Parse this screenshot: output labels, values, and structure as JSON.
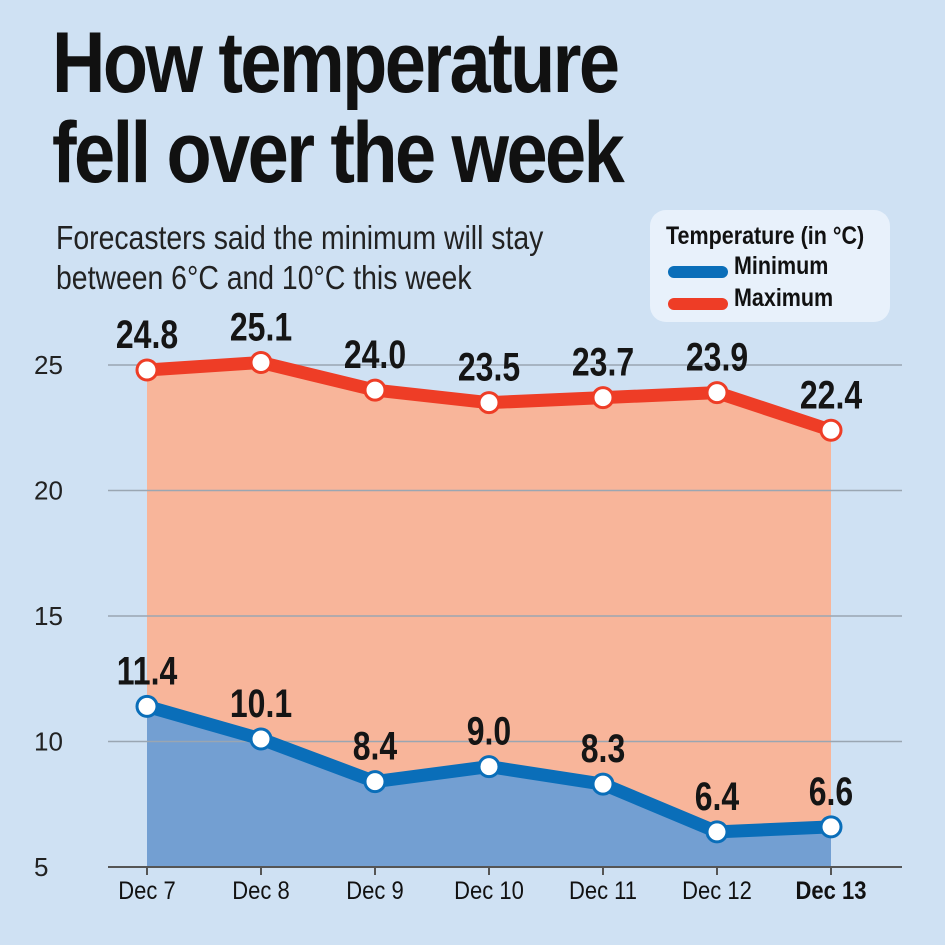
{
  "title_line1": "How temperature",
  "title_line2": "fell over the week",
  "subtitle_line1": "Forecasters said the minimum will stay",
  "subtitle_line2": "between 6°C and 10°C this week",
  "legend": {
    "title": "Temperature (in °C)",
    "items": [
      {
        "label": "Minimum",
        "color": "#0a6eb9"
      },
      {
        "label": "Maximum",
        "color": "#ee3d26"
      }
    ]
  },
  "colors": {
    "background": "#cfe1f3",
    "max_fill": "#f8b59a",
    "min_fill": "#739fd2",
    "max_line": "#ee3d26",
    "min_line": "#0a6eb9",
    "grid": "#9aa6b2"
  },
  "chart_data": {
    "type": "area",
    "categories": [
      "Dec 7",
      "Dec 8",
      "Dec 9",
      "Dec 10",
      "Dec 11",
      "Dec 12",
      "Dec 13"
    ],
    "highlighted_category": "Dec 13",
    "series": [
      {
        "name": "Maximum",
        "values": [
          24.8,
          25.1,
          24.0,
          23.5,
          23.7,
          23.9,
          22.4
        ],
        "labels": [
          "24.8",
          "25.1",
          "24.0",
          "23.5",
          "23.7",
          "23.9",
          "22.4"
        ]
      },
      {
        "name": "Minimum",
        "values": [
          11.4,
          10.1,
          8.4,
          9.0,
          8.3,
          6.4,
          6.6
        ],
        "labels": [
          "11.4",
          "10.1",
          "8.4",
          "9.0",
          "8.3",
          "6.4",
          "6.6"
        ]
      }
    ],
    "yticks": [
      5,
      10,
      15,
      20,
      25
    ],
    "ylim": [
      5,
      25
    ],
    "grid": true,
    "legend_position": "top-right"
  }
}
